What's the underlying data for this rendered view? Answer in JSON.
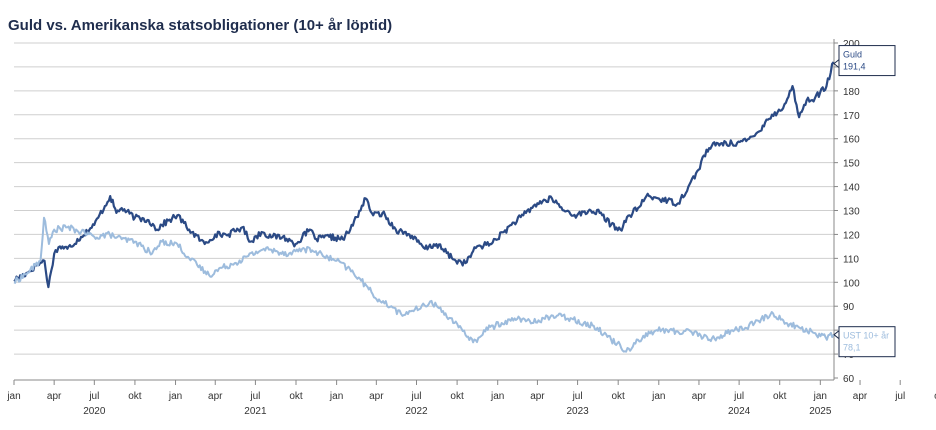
{
  "chart_data": {
    "type": "line",
    "title": "Guld vs. Amerikanska statsobligationer (10+ år löptid)",
    "xlabel": "",
    "ylabel": "",
    "ylim": [
      60,
      200
    ],
    "y_ticks": [
      "200",
      "190",
      "180",
      "170",
      "160",
      "150",
      "140",
      "130",
      "120",
      "110",
      "100",
      "90",
      "80",
      "70",
      "60"
    ],
    "x_range": [
      "2020-01-01",
      "2025-02-01"
    ],
    "x_tick_labels": [
      "jan",
      "apr",
      "jul",
      "okt",
      "jan",
      "apr",
      "jul",
      "okt",
      "jan",
      "apr",
      "jul",
      "okt",
      "jan",
      "apr",
      "jul",
      "okt",
      "jan",
      "apr",
      "jul",
      "okt",
      "jan",
      "apr",
      "jul",
      "okt",
      "jan"
    ],
    "year_labels": [
      "2020",
      "2021",
      "2022",
      "2023",
      "2024",
      "2025"
    ],
    "grid": true,
    "legend": "none",
    "colors": {
      "Guld": "#2b4a85",
      "UST 10+ år": "#9dbcdd",
      "grid": "#cfcfcf"
    },
    "callouts": [
      {
        "series": "Guld",
        "line1": "Guld",
        "line2": "191,4",
        "value": 191.4
      },
      {
        "series": "UST 10+ år",
        "line1": "UST 10+ år",
        "line2": "78,1",
        "value": 78.1
      }
    ],
    "series": [
      {
        "name": "Guld",
        "x": [
          "2020-01-01",
          "2020-02-01",
          "2020-02-20",
          "2020-03-10",
          "2020-03-19",
          "2020-04-01",
          "2020-04-14",
          "2020-05-01",
          "2020-06-01",
          "2020-07-01",
          "2020-08-06",
          "2020-08-20",
          "2020-09-01",
          "2020-10-01",
          "2020-11-01",
          "2020-11-20",
          "2020-12-01",
          "2021-01-05",
          "2021-02-01",
          "2021-03-08",
          "2021-04-01",
          "2021-05-01",
          "2021-06-01",
          "2021-06-20",
          "2021-07-15",
          "2021-08-09",
          "2021-09-01",
          "2021-09-30",
          "2021-11-01",
          "2021-11-16",
          "2021-12-15",
          "2022-01-15",
          "2022-02-01",
          "2022-03-08",
          "2022-03-25",
          "2022-04-15",
          "2022-05-15",
          "2022-06-15",
          "2022-07-20",
          "2022-08-15",
          "2022-09-28",
          "2022-10-20",
          "2022-11-15",
          "2022-12-15",
          "2023-01-15",
          "2023-02-01",
          "2023-02-28",
          "2023-04-01",
          "2023-05-04",
          "2023-05-31",
          "2023-06-30",
          "2023-07-31",
          "2023-08-20",
          "2023-09-15",
          "2023-10-06",
          "2023-10-27",
          "2023-11-15",
          "2023-12-04",
          "2024-01-01",
          "2024-02-14",
          "2024-03-08",
          "2024-03-31",
          "2024-04-12",
          "2024-04-30",
          "2024-05-20",
          "2024-06-15",
          "2024-07-17",
          "2024-08-02",
          "2024-08-15",
          "2024-09-01",
          "2024-09-26",
          "2024-10-15",
          "2024-10-30",
          "2024-11-14",
          "2024-12-01",
          "2024-12-20",
          "2025-01-15",
          "2025-01-31"
        ],
        "values": [
          101,
          104,
          107,
          109,
          98,
          112,
          115,
          114,
          119,
          124,
          136,
          129,
          131,
          127,
          126,
          122,
          124,
          128,
          122,
          116,
          120,
          120,
          123,
          117,
          121,
          119,
          119,
          116,
          122,
          118,
          119,
          118,
          122,
          135,
          128,
          129,
          122,
          120,
          114,
          116,
          109,
          108,
          115,
          116,
          121,
          124,
          128,
          133,
          135,
          130,
          128,
          130,
          129,
          124,
          122,
          128,
          131,
          136,
          135,
          133,
          140,
          147,
          153,
          157,
          158,
          158,
          159,
          161,
          163,
          168,
          171,
          175,
          182,
          169,
          176,
          177,
          182,
          192
        ]
      },
      {
        "name": "UST 10+ år",
        "x": [
          "2020-01-01",
          "2020-02-01",
          "2020-03-01",
          "2020-03-09",
          "2020-03-20",
          "2020-04-01",
          "2020-05-01",
          "2020-06-01",
          "2020-07-01",
          "2020-08-05",
          "2020-09-01",
          "2020-10-01",
          "2020-11-09",
          "2020-12-01",
          "2021-01-05",
          "2021-02-01",
          "2021-03-18",
          "2021-04-15",
          "2021-05-15",
          "2021-06-15",
          "2021-07-20",
          "2021-08-15",
          "2021-09-15",
          "2021-10-15",
          "2021-11-15",
          "2021-12-01",
          "2022-01-01",
          "2022-01-25",
          "2022-02-20",
          "2022-03-15",
          "2022-04-10",
          "2022-05-05",
          "2022-05-30",
          "2022-06-15",
          "2022-07-10",
          "2022-08-01",
          "2022-08-30",
          "2022-09-25",
          "2022-10-20",
          "2022-11-15",
          "2022-12-01",
          "2023-01-10",
          "2023-02-20",
          "2023-03-20",
          "2023-04-15",
          "2023-05-15",
          "2023-06-15",
          "2023-07-15",
          "2023-08-15",
          "2023-09-15",
          "2023-10-05",
          "2023-10-19",
          "2023-11-15",
          "2023-12-27",
          "2024-01-20",
          "2024-02-15",
          "2024-03-10",
          "2024-04-25",
          "2024-05-15",
          "2024-06-15",
          "2024-07-15",
          "2024-08-05",
          "2024-09-16",
          "2024-10-15",
          "2024-11-15",
          "2024-12-15",
          "2025-01-13",
          "2025-01-31"
        ],
        "values": [
          100,
          104,
          109,
          127,
          116,
          122,
          123,
          121,
          119,
          120,
          118,
          117,
          112,
          117,
          116,
          110,
          103,
          106,
          108,
          111,
          114,
          113,
          112,
          114,
          113,
          111,
          109,
          106,
          102,
          97,
          92,
          90,
          86,
          88,
          89,
          92,
          88,
          83,
          78,
          75,
          80,
          83,
          85,
          83,
          85,
          86,
          85,
          83,
          81,
          76,
          74,
          71,
          76,
          80,
          80,
          79,
          80,
          76,
          77,
          80,
          81,
          83,
          87,
          83,
          81,
          79,
          77,
          78
        ]
      }
    ]
  }
}
